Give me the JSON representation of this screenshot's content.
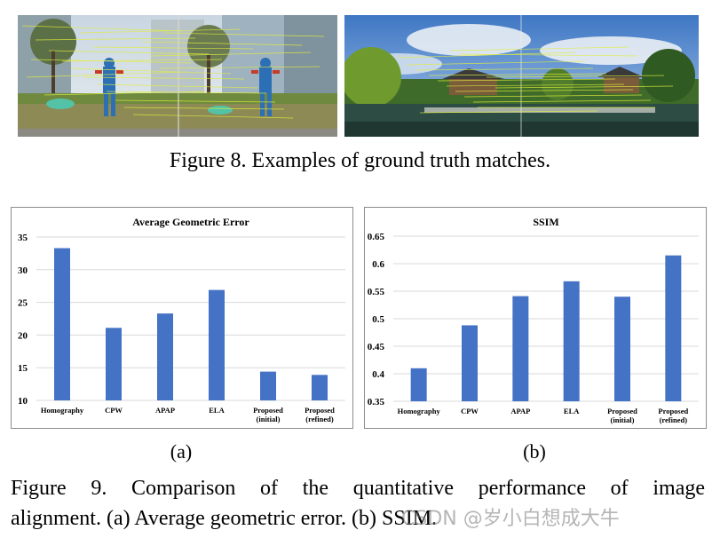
{
  "figure8": {
    "caption": "Figure 8. Examples of ground truth matches."
  },
  "figure9": {
    "caption_line1": "Figure 9. Comparison of the quantitative performance of image",
    "caption_line2": "alignment. (a) Average geometric error. (b) SSIM.",
    "sub_a": "(a)",
    "sub_b": "(b)"
  },
  "watermark": "CSDN @岁小白想成大牛",
  "chart_data": [
    {
      "type": "bar",
      "title": "Average Geometric Error",
      "categories": [
        "Homography",
        "CPW",
        "APAP",
        "ELA",
        "Proposed (initial)",
        "Proposed (refined)"
      ],
      "category_lines": [
        [
          "Homography"
        ],
        [
          "CPW"
        ],
        [
          "APAP"
        ],
        [
          "ELA"
        ],
        [
          "Proposed",
          "(initial)"
        ],
        [
          "Proposed",
          "(refined)"
        ]
      ],
      "values": [
        33.3,
        21.1,
        23.3,
        26.9,
        14.4,
        13.9
      ],
      "ylim": [
        10,
        35
      ],
      "yticks": [
        "10",
        "15",
        "20",
        "25",
        "30",
        "35"
      ],
      "ytick_values": [
        10,
        15,
        20,
        25,
        30,
        35
      ],
      "grid": true,
      "bar_color": "#4472C4"
    },
    {
      "type": "bar",
      "title": "SSIM",
      "categories": [
        "Homography",
        "CPW",
        "APAP",
        "ELA",
        "Proposed (initial)",
        "Proposed (refined)"
      ],
      "category_lines": [
        [
          "Homography"
        ],
        [
          "CPW"
        ],
        [
          "APAP"
        ],
        [
          "ELA"
        ],
        [
          "Proposed",
          "(initial)"
        ],
        [
          "Proposed",
          "(refined)"
        ]
      ],
      "values": [
        0.41,
        0.488,
        0.541,
        0.568,
        0.54,
        0.615
      ],
      "ylim": [
        0.35,
        0.65
      ],
      "yticks": [
        "0.35",
        "0.4",
        "0.45",
        "0.5",
        "0.55",
        "0.6",
        "0.65"
      ],
      "ytick_values": [
        0.35,
        0.4,
        0.45,
        0.5,
        0.55,
        0.6,
        0.65
      ],
      "grid": true,
      "bar_color": "#4472C4"
    }
  ]
}
